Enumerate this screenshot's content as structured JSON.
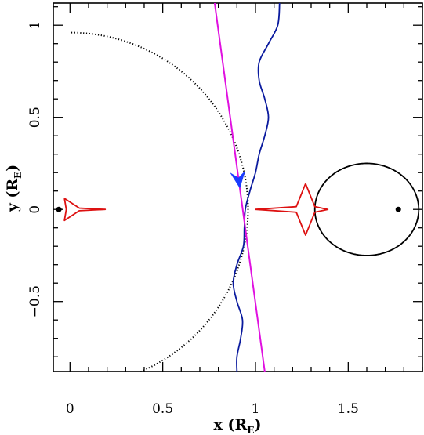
{
  "chart_data": {
    "type": "line",
    "xlabel": {
      "prefix": "x (R",
      "sub": "E",
      "suffix": ")"
    },
    "ylabel": {
      "prefix": "y (R",
      "sub": "E",
      "suffix": ")"
    },
    "xlim": [
      -0.09,
      1.9
    ],
    "ylim": [
      -0.88,
      1.12
    ],
    "xticks": [
      {
        "value": 0,
        "label": "0"
      },
      {
        "value": 0.5,
        "label": "0.5"
      },
      {
        "value": 1,
        "label": "1"
      },
      {
        "value": 1.5,
        "label": "1.5"
      }
    ],
    "yticks": [
      {
        "value": -0.5,
        "label": "−0.5"
      },
      {
        "value": 0,
        "label": "0"
      },
      {
        "value": 0.5,
        "label": "0.5"
      },
      {
        "value": 1,
        "label": "1"
      }
    ],
    "grid": false,
    "colors": {
      "caustic": "#dd1111",
      "critical_curve": "#000000",
      "trajectory": "#e010e0",
      "image_track": "#0a1a9e",
      "arrow": "#1a3cff",
      "lens_mass": "#000000"
    },
    "lens_masses": [
      {
        "x": -0.06,
        "y": 0.0
      },
      {
        "x": 1.77,
        "y": 0.0
      }
    ],
    "caustics": [
      {
        "name": "left-caustic",
        "points": [
          [
            -0.03,
            0.06
          ],
          [
            0.05,
            0.007
          ],
          [
            0.19,
            0.0
          ],
          [
            0.05,
            -0.007
          ],
          [
            -0.03,
            -0.06
          ],
          [
            -0.02,
            0.0
          ],
          [
            -0.03,
            0.06
          ]
        ]
      },
      {
        "name": "central-caustic",
        "points": [
          [
            1.27,
            0.14
          ],
          [
            1.32,
            0.015
          ],
          [
            1.39,
            0.0
          ],
          [
            1.32,
            -0.015
          ],
          [
            1.27,
            -0.14
          ],
          [
            1.22,
            -0.015
          ],
          [
            1.0,
            0.0
          ],
          [
            1.22,
            0.015
          ],
          [
            1.27,
            0.14
          ]
        ]
      }
    ],
    "critical_curves": [
      {
        "name": "large-dotted-arc",
        "style": "dotted",
        "center": [
          0.0,
          0.0
        ],
        "radius": 0.96,
        "theta_range_deg": [
          -80,
          90
        ]
      },
      {
        "name": "small-oval",
        "style": "solid",
        "center": [
          1.6,
          0.0
        ],
        "rx": 0.28,
        "ry": 0.25,
        "x_max": 1.89
      }
    ],
    "source_trajectory": [
      [
        0.78,
        1.12
      ],
      [
        1.05,
        -0.88
      ]
    ],
    "image_track": [
      [
        1.13,
        1.12
      ],
      [
        1.12,
        1.0
      ],
      [
        1.07,
        0.9
      ],
      [
        1.02,
        0.8
      ],
      [
        1.02,
        0.7
      ],
      [
        1.05,
        0.6
      ],
      [
        1.07,
        0.5
      ],
      [
        1.05,
        0.4
      ],
      [
        1.02,
        0.3
      ],
      [
        1.0,
        0.2
      ],
      [
        0.97,
        0.1
      ],
      [
        0.945,
        0.0
      ],
      [
        0.94,
        -0.1
      ],
      [
        0.935,
        -0.2
      ],
      [
        0.9,
        -0.3
      ],
      [
        0.88,
        -0.4
      ],
      [
        0.9,
        -0.5
      ],
      [
        0.93,
        -0.6
      ],
      [
        0.92,
        -0.7
      ],
      [
        0.9,
        -0.8
      ],
      [
        0.9,
        -0.88
      ]
    ],
    "arrow_on_trajectory": {
      "x": 0.91,
      "y": 0.16,
      "direction": "down"
    }
  }
}
